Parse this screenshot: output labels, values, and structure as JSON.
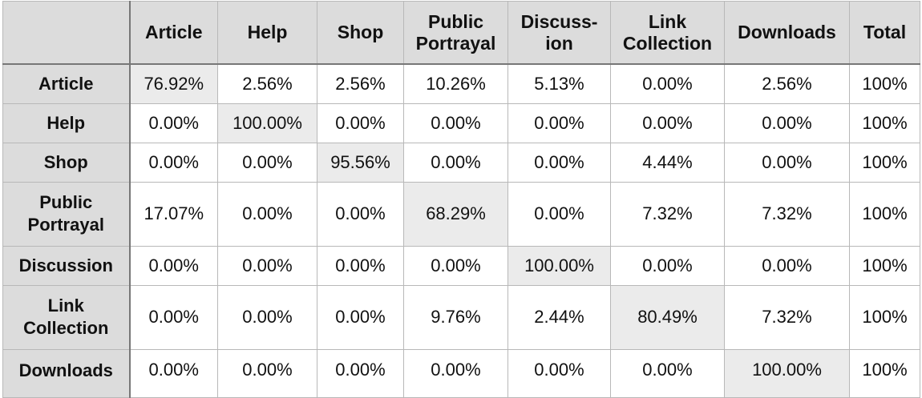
{
  "table": {
    "columns": [
      {
        "id": "article",
        "line1": "Article",
        "line2": ""
      },
      {
        "id": "help",
        "line1": "Help",
        "line2": ""
      },
      {
        "id": "shop",
        "line1": "Shop",
        "line2": ""
      },
      {
        "id": "public-portrayal",
        "line1": "Public",
        "line2": "Portrayal"
      },
      {
        "id": "discussion",
        "line1": "Discuss-",
        "line2": "ion"
      },
      {
        "id": "link-collection",
        "line1": "Link",
        "line2": "Collection"
      },
      {
        "id": "downloads",
        "line1": "Downloads",
        "line2": ""
      },
      {
        "id": "total",
        "line1": "Total",
        "line2": ""
      }
    ],
    "rows": [
      {
        "line1": "Article",
        "line2": "",
        "cells": [
          "76.92%",
          "2.56%",
          "2.56%",
          "10.26%",
          "5.13%",
          "0.00%",
          "2.56%",
          "100%"
        ]
      },
      {
        "line1": "Help",
        "line2": "",
        "cells": [
          "0.00%",
          "100.00%",
          "0.00%",
          "0.00%",
          "0.00%",
          "0.00%",
          "0.00%",
          "100%"
        ]
      },
      {
        "line1": "Shop",
        "line2": "",
        "cells": [
          "0.00%",
          "0.00%",
          "95.56%",
          "0.00%",
          "0.00%",
          "4.44%",
          "0.00%",
          "100%"
        ]
      },
      {
        "line1": "Public",
        "line2": "Portrayal",
        "cells": [
          "17.07%",
          "0.00%",
          "0.00%",
          "68.29%",
          "0.00%",
          "7.32%",
          "7.32%",
          "100%"
        ]
      },
      {
        "line1": "Discussion",
        "line2": "",
        "cells": [
          "0.00%",
          "0.00%",
          "0.00%",
          "0.00%",
          "100.00%",
          "0.00%",
          "0.00%",
          "100%"
        ]
      },
      {
        "line1": "Link",
        "line2": "Collection",
        "cells": [
          "0.00%",
          "0.00%",
          "0.00%",
          "9.76%",
          "2.44%",
          "80.49%",
          "7.32%",
          "100%"
        ]
      },
      {
        "line1": "Downloads",
        "line2": "",
        "cells": [
          "0.00%",
          "0.00%",
          "0.00%",
          "0.00%",
          "0.00%",
          "0.00%",
          "100.00%",
          "100%"
        ]
      }
    ]
  }
}
